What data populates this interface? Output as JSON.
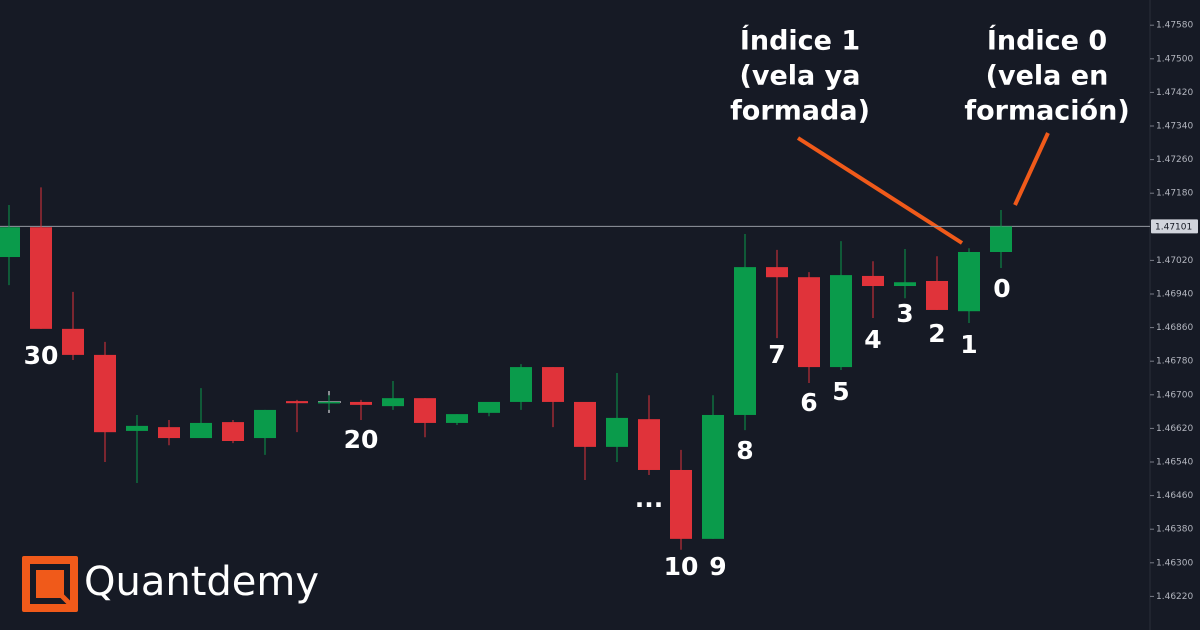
{
  "chart_data": {
    "type": "candlestick",
    "categories": [
      null,
      "30",
      null,
      null,
      null,
      null,
      null,
      null,
      null,
      null,
      null,
      "20",
      null,
      null,
      null,
      null,
      null,
      null,
      null,
      null,
      "...",
      "10",
      "9",
      "8",
      "7",
      "6",
      "5",
      "4",
      "3",
      "2",
      "1",
      "0"
    ],
    "open": [
      1.47028,
      1.47099,
      1.46857,
      1.46795,
      1.46614,
      1.46623,
      1.46597,
      1.46635,
      1.46597,
      1.46685,
      1.46683,
      1.46683,
      1.46673,
      1.46692,
      1.46633,
      1.46657,
      1.46683,
      1.46766,
      1.46683,
      1.46576,
      1.46642,
      1.46521,
      1.46357,
      1.46652,
      1.47004,
      1.4698,
      1.46766,
      1.46983,
      1.46959,
      1.46971,
      1.46899,
      1.4704
    ],
    "high": [
      1.47152,
      1.47194,
      1.46945,
      1.46826,
      1.46652,
      1.4664,
      1.46716,
      1.4664,
      1.46664,
      1.46688,
      1.46699,
      1.46688,
      1.46733,
      1.46692,
      1.46654,
      1.46683,
      1.46773,
      1.46766,
      1.46683,
      1.46752,
      1.46699,
      1.46569,
      1.46699,
      1.47083,
      1.47045,
      1.46992,
      1.47066,
      1.47018,
      1.47047,
      1.4703,
      1.47049,
      1.4714
    ],
    "low": [
      1.46961,
      1.46857,
      1.46783,
      1.4654,
      1.4649,
      1.4658,
      1.46597,
      1.46585,
      1.46557,
      1.46611,
      1.46664,
      1.4664,
      1.46664,
      1.46599,
      1.46628,
      1.46649,
      1.46664,
      1.46623,
      1.46497,
      1.4654,
      1.46509,
      1.46331,
      1.46357,
      1.46616,
      1.46835,
      1.46728,
      1.46759,
      1.46883,
      1.4693,
      1.46902,
      1.46871,
      1.47002
    ],
    "close": [
      1.47099,
      1.46857,
      1.46795,
      1.46611,
      1.46626,
      1.46597,
      1.46633,
      1.4659,
      1.46664,
      1.4668,
      1.46683,
      1.46676,
      1.46692,
      1.46633,
      1.46654,
      1.46683,
      1.46766,
      1.46683,
      1.46576,
      1.46645,
      1.46521,
      1.46357,
      1.46652,
      1.47004,
      1.4698,
      1.46766,
      1.46985,
      1.46959,
      1.46968,
      1.46902,
      1.4704,
      1.47101
    ],
    "up_color": "#0a9b4b",
    "down_color": "#e0333a",
    "ylim": [
      1.4614,
      1.4764
    ],
    "yticks": [
      {
        "value": 1.4758,
        "label": "1.47580"
      },
      {
        "value": 1.475,
        "label": "1.47500"
      },
      {
        "value": 1.4742,
        "label": "1.47420"
      },
      {
        "value": 1.4734,
        "label": "1.47340"
      },
      {
        "value": 1.4726,
        "label": "1.47260"
      },
      {
        "value": 1.4718,
        "label": "1.47180"
      },
      {
        "value": 1.4702,
        "label": "1.47020"
      },
      {
        "value": 1.4694,
        "label": "1.46940"
      },
      {
        "value": 1.4686,
        "label": "1.46860"
      },
      {
        "value": 1.4678,
        "label": "1.46780"
      },
      {
        "value": 1.467,
        "label": "1.46700"
      },
      {
        "value": 1.4662,
        "label": "1.46620"
      },
      {
        "value": 1.4654,
        "label": "1.46540"
      },
      {
        "value": 1.4646,
        "label": "1.46460"
      },
      {
        "value": 1.4638,
        "label": "1.46380"
      },
      {
        "value": 1.463,
        "label": "1.46300"
      },
      {
        "value": 1.4622,
        "label": "1.46220"
      }
    ],
    "current_price": 1.47101,
    "annotations": [
      {
        "lines": [
          "Índice 1",
          "(vela ya",
          "formada)"
        ]
      },
      {
        "lines": [
          "Índice 0",
          "(vela en",
          "formación)"
        ]
      }
    ],
    "brand": "Quantdemy"
  }
}
